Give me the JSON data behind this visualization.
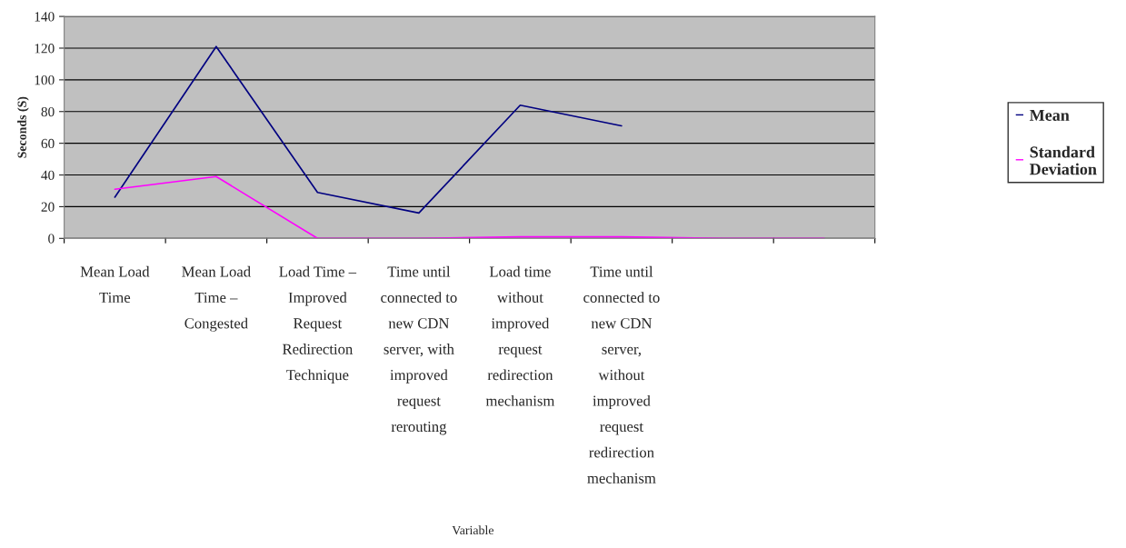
{
  "chart_data": {
    "type": "line",
    "annotations": [
      "Variable"
    ],
    "ylabel": "Seconds (S)",
    "categories": [
      "Mean Load\nTime",
      "Mean Load\nTime –\nCongested",
      "Load Time –\nImproved\nRequest\nRedirection\nTechnique",
      "Time until\nconnected to\nnew CDN\nserver, with\nimproved\nrequest\nrerouting",
      "Load time\nwithout\nimproved\nrequest\nredirection\nmechanism",
      "Time until\nconnected to\nnew CDN\nserver,\nwithout\nimproved\nrequest\nredirection\nmechanism",
      null,
      null
    ],
    "series": [
      {
        "name": "Mean",
        "color": "#000080",
        "values": [
          26,
          121,
          29,
          16,
          84,
          71,
          null,
          null
        ]
      },
      {
        "name": "Standard Deviation",
        "color": "#ff00ff",
        "values": [
          31,
          39,
          0,
          0,
          1,
          1,
          0,
          0
        ]
      }
    ],
    "ylim": [
      0,
      140
    ],
    "yticks": [
      0,
      20,
      40,
      60,
      80,
      100,
      120,
      140
    ],
    "grid": "y",
    "legend": "right",
    "marker": "none",
    "line_style": "solid"
  }
}
